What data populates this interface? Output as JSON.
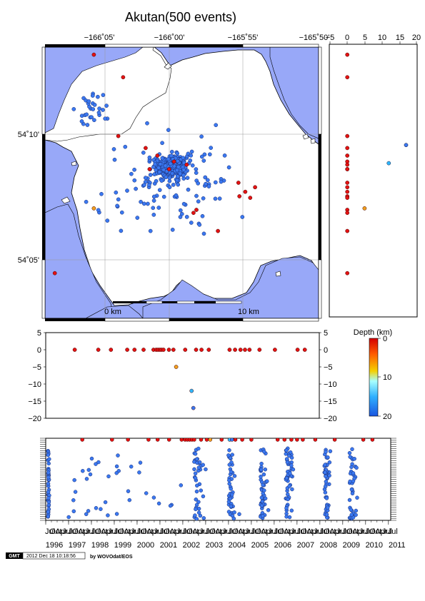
{
  "title": "Akutan(500 events)",
  "map": {
    "lon_labels": [
      "−166˚05'",
      "−166˚00'",
      "−165˚55'",
      "−165˚50'"
    ],
    "lon_values": [
      -166.0833,
      -166.0,
      -165.9167,
      -165.8333
    ],
    "lat_labels": [
      "54˚10'",
      "54˚05'"
    ],
    "lat_values": [
      54.1667,
      54.0833
    ],
    "lon_range": [
      -166.1,
      -165.82
    ],
    "lat_range": [
      54.05,
      54.23
    ],
    "scale_bar": {
      "left": "0 km",
      "right": "10 km"
    },
    "water_color": "#98a8f8",
    "land_color": "#ffffff"
  },
  "depth_section": {
    "x_ticks": [
      "−5",
      "0",
      "5",
      "10",
      "15",
      "20"
    ],
    "x_range": [
      -5,
      20
    ]
  },
  "time_depth": {
    "y_ticks": [
      "5",
      "0",
      "−5",
      "−10",
      "−15",
      "−20"
    ],
    "y_range": [
      -20,
      5
    ]
  },
  "colorbar": {
    "label": "Depth (km)",
    "ticks": [
      "0",
      "10",
      "20"
    ]
  },
  "timeline": {
    "years": [
      "1996",
      "1997",
      "1998",
      "1999",
      "2000",
      "2001",
      "2002",
      "2003",
      "2004",
      "2005",
      "2006",
      "2007",
      "2008",
      "2009",
      "2010",
      "2011"
    ],
    "month_labels": [
      "Jul",
      "Oct",
      "Apr"
    ],
    "range": [
      1996.0,
      2011.1
    ]
  },
  "footer": {
    "logo": "GMT",
    "timestamp": "2012 Dec 18 10:18:56",
    "credit": "by WOVOdat/EOS"
  },
  "chart_data": [
    {
      "type": "scatter",
      "title": "Akutan(500 events)",
      "xlabel": "",
      "ylabel": "",
      "x_field": "longitude",
      "y_field": "latitude",
      "xlim": [
        -166.1,
        -165.82
      ],
      "ylim": [
        54.05,
        54.23
      ],
      "color_by": "depth_km",
      "points": [
        {
          "lon": -166.05,
          "lat": 54.225,
          "depth": 0
        },
        {
          "lon": -166.02,
          "lat": 54.21,
          "depth": 0
        },
        {
          "lon": -166.025,
          "lat": 54.171,
          "depth": 0
        },
        {
          "lon": -165.997,
          "lat": 54.163,
          "depth": 0
        },
        {
          "lon": -165.985,
          "lat": 54.158,
          "depth": 0
        },
        {
          "lon": -165.968,
          "lat": 54.154,
          "depth": 0
        },
        {
          "lon": -165.973,
          "lat": 54.149,
          "depth": 0
        },
        {
          "lon": -165.955,
          "lat": 54.152,
          "depth": 0
        },
        {
          "lon": -165.993,
          "lat": 54.149,
          "depth": 0
        },
        {
          "lon": -165.902,
          "lat": 54.14,
          "depth": 0
        },
        {
          "lon": -165.895,
          "lat": 54.134,
          "depth": 0
        },
        {
          "lon": -165.885,
          "lat": 54.137,
          "depth": 0
        },
        {
          "lon": -165.901,
          "lat": 54.131,
          "depth": 0
        },
        {
          "lon": -165.89,
          "lat": 54.13,
          "depth": 0
        },
        {
          "lon": -165.945,
          "lat": 54.122,
          "depth": 0
        },
        {
          "lon": -165.948,
          "lat": 54.12,
          "depth": 0
        },
        {
          "lon": -165.923,
          "lat": 54.108,
          "depth": 0
        },
        {
          "lon": -166.09,
          "lat": 54.08,
          "depth": 0
        },
        {
          "lon": -166.05,
          "lat": 54.123,
          "depth": 5
        }
      ]
    },
    {
      "type": "scatter",
      "xlabel": "",
      "ylabel": "",
      "x_field": "depth_km",
      "y_field": "latitude",
      "xlim": [
        -5,
        20
      ],
      "ylim": [
        54.05,
        54.23
      ]
    },
    {
      "type": "scatter",
      "xlabel": "",
      "ylabel": "",
      "x_field": "time",
      "y_field": "negative_depth_km",
      "ylim": [
        -20,
        5
      ],
      "points": [
        {
          "t": 1997.6,
          "z": 0
        },
        {
          "t": 1998.9,
          "z": 0
        },
        {
          "t": 1999.6,
          "z": 0
        },
        {
          "t": 2000.5,
          "z": 0
        },
        {
          "t": 2000.9,
          "z": 0
        },
        {
          "t": 2001.4,
          "z": 0
        },
        {
          "t": 2001.95,
          "z": 0
        },
        {
          "t": 2002.1,
          "z": 0
        },
        {
          "t": 2002.2,
          "z": 0
        },
        {
          "t": 2002.3,
          "z": 0
        },
        {
          "t": 2002.4,
          "z": 0
        },
        {
          "t": 2002.5,
          "z": 0
        },
        {
          "t": 2002.8,
          "z": 0
        },
        {
          "t": 2003.05,
          "z": 0
        },
        {
          "t": 2003.7,
          "z": 0
        },
        {
          "t": 2004.3,
          "z": 0
        },
        {
          "t": 2004.6,
          "z": 0
        },
        {
          "t": 2005.0,
          "z": 0
        },
        {
          "t": 2006.15,
          "z": 0
        },
        {
          "t": 2006.45,
          "z": 0
        },
        {
          "t": 2006.75,
          "z": 0
        },
        {
          "t": 2007.0,
          "z": 0
        },
        {
          "t": 2007.25,
          "z": 0
        },
        {
          "t": 2007.8,
          "z": 0
        },
        {
          "t": 2008.65,
          "z": 0
        },
        {
          "t": 2009.9,
          "z": 0
        },
        {
          "t": 2010.3,
          "z": 0
        },
        {
          "t": 2003.2,
          "z": -5
        },
        {
          "t": 2004.05,
          "z": -12
        },
        {
          "t": 2004.15,
          "z": -17
        }
      ]
    }
  ]
}
